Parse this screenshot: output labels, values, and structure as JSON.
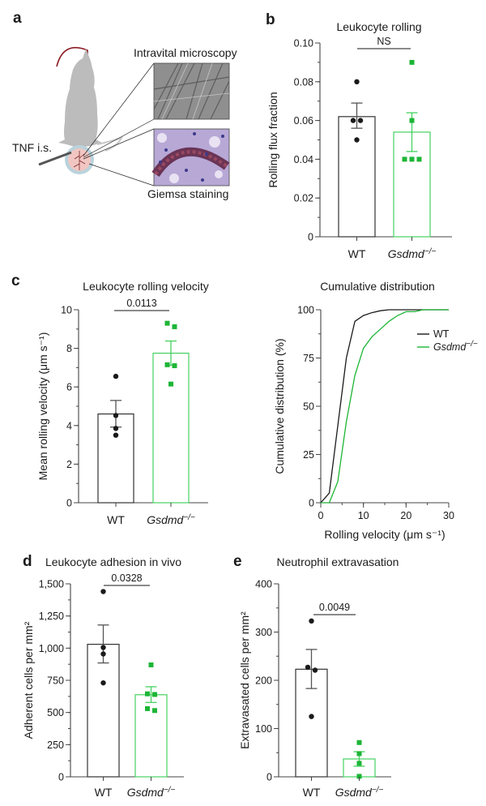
{
  "panel_labels": {
    "a": "a",
    "b": "b",
    "c": "c",
    "d": "d",
    "e": "e"
  },
  "panel_a": {
    "imaging_label": "Intravital microscopy",
    "staining_label": "Giemsa staining",
    "injection_label": "TNF i.s."
  },
  "colors": {
    "wt": "#1a1a1a",
    "ko_points": "#1db536",
    "ko_bar": "#45d160",
    "wt_error": "#555555"
  },
  "chart_data": [
    {
      "panel": "b",
      "type": "bar",
      "title": "Leukocyte rolling",
      "ylabel": "Rolling flux fraction",
      "xlabel": "",
      "categories": [
        "WT",
        "Gsdmd−/−"
      ],
      "ylim": [
        0,
        0.1
      ],
      "yticks": [
        0,
        0.02,
        0.04,
        0.06,
        0.08,
        0.1
      ],
      "ytick_labels": [
        "0",
        "0.02",
        "0.04",
        "0.06",
        "0.08",
        "0.10"
      ],
      "minor_tick_step": 0.01,
      "series": [
        {
          "category": "WT",
          "mean": 0.062,
          "sem": [
            0.056,
            0.069
          ],
          "points": [
            0.08,
            0.06,
            0.06,
            0.05
          ]
        },
        {
          "category": "Gsdmd−/−",
          "mean": 0.054,
          "sem": [
            0.044,
            0.064
          ],
          "points": [
            0.09,
            0.06,
            0.04,
            0.04,
            0.04
          ]
        }
      ],
      "significance": "NS"
    },
    {
      "panel": "c",
      "type": "bar",
      "title": "Leukocyte rolling velocity",
      "ylabel": "Mean rolling velocity (μm s⁻¹)",
      "xlabel": "",
      "categories": [
        "WT",
        "Gsdmd−/−"
      ],
      "ylim": [
        0,
        10
      ],
      "yticks": [
        0,
        2,
        4,
        6,
        8,
        10
      ],
      "ytick_labels": [
        "0",
        "2",
        "4",
        "6",
        "8",
        "10"
      ],
      "minor_tick_step": 1,
      "series": [
        {
          "category": "WT",
          "mean": 4.6,
          "sem": [
            3.92,
            5.3
          ],
          "points": [
            6.55,
            4.52,
            3.85,
            3.5
          ]
        },
        {
          "category": "Gsdmd−/−",
          "mean": 7.75,
          "sem": [
            7.12,
            8.38
          ],
          "points": [
            9.3,
            9.12,
            7.15,
            7.1,
            6.15
          ]
        }
      ],
      "significance": "0.0113"
    },
    {
      "panel": "c",
      "type": "line",
      "title": "Cumulative distribution",
      "ylabel": "Cumulative distribution (%)",
      "xlabel": "Rolling velocity (μm s⁻¹)",
      "xlim": [
        0,
        30
      ],
      "xticks": [
        0,
        10,
        20,
        30
      ],
      "x_minor_tick_step": 5,
      "ylim": [
        0,
        100
      ],
      "yticks": [
        0,
        25,
        50,
        75,
        100
      ],
      "y_minor_tick_step": 12.5,
      "legend": "top-right",
      "x": [
        0,
        2,
        4,
        6,
        8,
        10,
        12,
        14,
        16,
        18,
        20,
        22,
        24,
        26,
        28,
        30
      ],
      "series": [
        {
          "name": "WT",
          "values": [
            0,
            5,
            40,
            75,
            94,
            97,
            98.5,
            99.5,
            100,
            100,
            100,
            100,
            100,
            100,
            100,
            100
          ]
        },
        {
          "name": "Gsdmd−/−",
          "values": [
            0,
            0,
            11,
            42,
            66,
            80,
            86,
            90,
            94,
            97,
            99,
            99,
            100,
            100,
            100,
            100
          ]
        }
      ]
    },
    {
      "panel": "d",
      "type": "bar",
      "title": "Leukocyte adhesion in vivo",
      "ylabel": "Adherent cells per mm²",
      "xlabel": "",
      "categories": [
        "WT",
        "Gsdmd−/−"
      ],
      "ylim": [
        0,
        1500
      ],
      "yticks": [
        0,
        250,
        500,
        750,
        1000,
        1250,
        1500
      ],
      "ytick_labels": [
        "0",
        "250",
        "500",
        "750",
        "1,000",
        "1,250",
        "1,500"
      ],
      "minor_tick_step": 125,
      "series": [
        {
          "category": "WT",
          "mean": 1030,
          "sem": [
            885,
            1180
          ],
          "points": [
            1440,
            1005,
            955,
            730
          ]
        },
        {
          "category": "Gsdmd−/−",
          "mean": 638,
          "sem": [
            578,
            700
          ],
          "points": [
            870,
            645,
            640,
            530,
            515
          ]
        }
      ],
      "significance": "0.0328"
    },
    {
      "panel": "e",
      "type": "bar",
      "title": "Neutrophil extravasation",
      "ylabel": "Extravasated cells per mm²",
      "xlabel": "",
      "categories": [
        "WT",
        "Gsdmd−/−"
      ],
      "ylim": [
        0,
        400
      ],
      "yticks": [
        0,
        100,
        200,
        300,
        400
      ],
      "ytick_labels": [
        "0",
        "100",
        "200",
        "300",
        "400"
      ],
      "minor_tick_step": 50,
      "series": [
        {
          "category": "WT",
          "mean": 223,
          "sem": [
            183,
            264
          ],
          "points": [
            323,
            227,
            221,
            125
          ]
        },
        {
          "category": "Gsdmd−/−",
          "mean": 37,
          "sem": [
            22,
            52
          ],
          "points": [
            71,
            48,
            28,
            1
          ]
        }
      ],
      "significance": "0.0049"
    }
  ]
}
